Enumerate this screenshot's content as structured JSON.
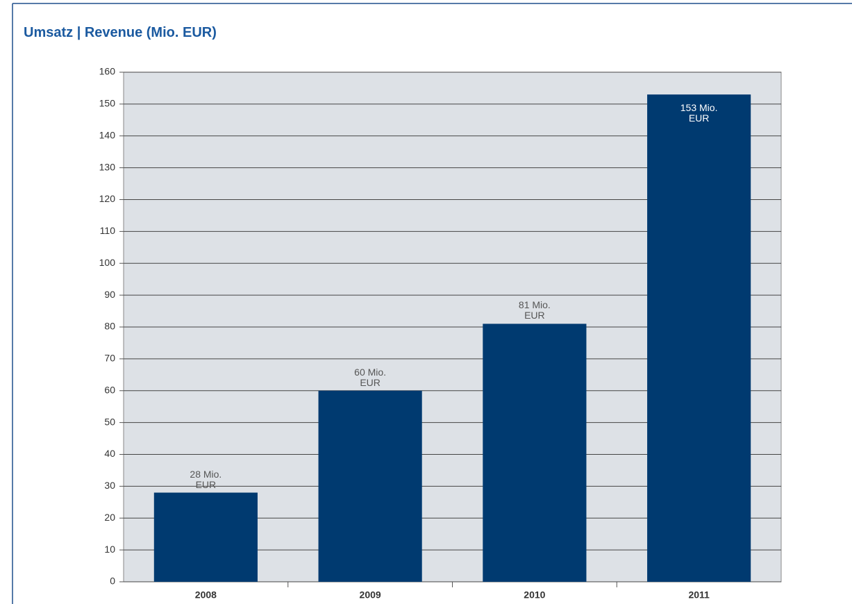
{
  "chart_data": {
    "type": "bar",
    "title": "Umsatz | Revenue (Mio. EUR)",
    "categories": [
      "2008",
      "2009",
      "2010",
      "2011"
    ],
    "values": [
      28,
      60,
      81,
      153
    ],
    "value_labels": [
      "28 Mio. EUR",
      "60 Mio. EUR",
      "81 Mio. EUR",
      "153 Mio. EUR"
    ],
    "color": "#003a70",
    "ylim": [
      0,
      160
    ],
    "yticks": [
      0,
      10,
      20,
      30,
      40,
      50,
      60,
      70,
      80,
      90,
      100,
      110,
      120,
      130,
      140,
      150,
      160
    ],
    "grid": true
  }
}
